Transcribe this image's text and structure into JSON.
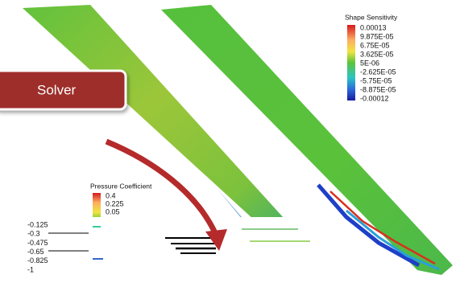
{
  "callout": {
    "label": "Solver"
  },
  "shape_sensitivity": {
    "title": "Shape Sensitivity",
    "labels": [
      "0.00013",
      "9.875E-05",
      "6.75E-05",
      "3.625E-05",
      "5E-06",
      "-2.625E-05",
      "-5.75E-05",
      "-8.875E-05",
      "-0.00012"
    ]
  },
  "pressure_coefficient": {
    "title": "Pressure Coefficient",
    "labels": [
      "0.4",
      "0.225",
      "0.05"
    ],
    "partial_labels": [
      "-0.125",
      "-0.3",
      "-0.475",
      "-0.65",
      "-0.825",
      "-1"
    ]
  }
}
